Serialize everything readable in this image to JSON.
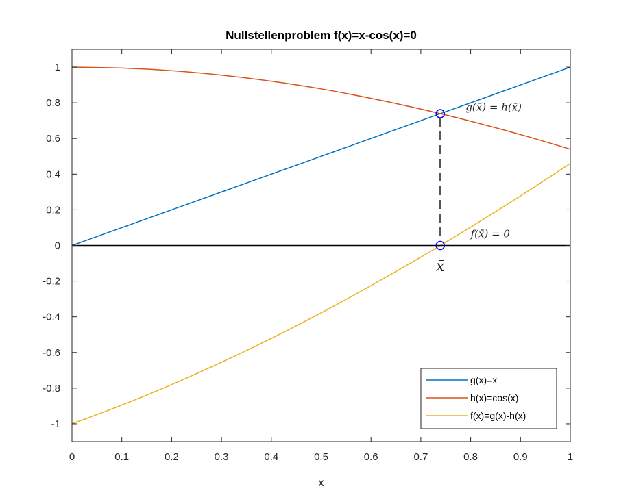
{
  "chart_data": {
    "type": "line",
    "title": "Nullstellenproblem f(x)=x-cos(x)=0",
    "xlabel": "x",
    "ylabel": "",
    "xlim": [
      0,
      1
    ],
    "ylim": [
      -1.1,
      1.1
    ],
    "xticks": [
      0,
      0.1,
      0.2,
      0.3,
      0.4,
      0.5,
      0.6,
      0.7,
      0.8,
      0.9,
      1
    ],
    "xtick_labels": [
      "0",
      "0.1",
      "0.2",
      "0.3",
      "0.4",
      "0.5",
      "0.6",
      "0.7",
      "0.8",
      "0.9",
      "1"
    ],
    "yticks": [
      -1,
      -0.8,
      -0.6,
      -0.4,
      -0.2,
      0,
      0.2,
      0.4,
      0.6,
      0.8,
      1
    ],
    "ytick_labels": [
      "-1",
      "-0.8",
      "-0.6",
      "-0.4",
      "-0.2",
      "0",
      "0.2",
      "0.4",
      "0.6",
      "0.8",
      "1"
    ],
    "grid": false,
    "legend_position": "bottom-right",
    "series": [
      {
        "name": "g(x)=x",
        "color": "#0072BD",
        "x": [
          0,
          0.1,
          0.2,
          0.3,
          0.4,
          0.5,
          0.6,
          0.7,
          0.8,
          0.9,
          1
        ],
        "y": [
          0,
          0.1,
          0.2,
          0.3,
          0.4,
          0.5,
          0.6,
          0.7,
          0.8,
          0.9,
          1
        ]
      },
      {
        "name": "h(x)=cos(x)",
        "color": "#D95319",
        "x": [
          0,
          0.1,
          0.2,
          0.3,
          0.4,
          0.5,
          0.6,
          0.7,
          0.8,
          0.9,
          1
        ],
        "y": [
          1,
          0.995,
          0.98,
          0.955,
          0.921,
          0.878,
          0.825,
          0.765,
          0.697,
          0.622,
          0.54
        ]
      },
      {
        "name": "f(x)=g(x)-h(x)",
        "color": "#EDB120",
        "x": [
          0,
          0.1,
          0.2,
          0.3,
          0.4,
          0.5,
          0.6,
          0.7,
          0.8,
          0.9,
          1
        ],
        "y": [
          -1,
          -0.895,
          -0.78,
          -0.655,
          -0.521,
          -0.378,
          -0.225,
          -0.065,
          0.103,
          0.278,
          0.46
        ]
      }
    ],
    "zero_line": {
      "y": 0,
      "color": "#000000"
    },
    "root": {
      "x": 0.739,
      "y": 0.739,
      "marker_color": "#0000FF"
    },
    "drop_line": {
      "x": 0.739,
      "y_from": 0,
      "y_to": 0.739,
      "color": "#555555"
    },
    "annotations": [
      {
        "text": "g(x̄) = h(x̄)",
        "x": 0.79,
        "y": 0.775
      },
      {
        "text": "f(x̄) = 0",
        "x": 0.8,
        "y": 0.065
      },
      {
        "text": "x̄",
        "x": 0.739,
        "y": -0.09
      }
    ]
  }
}
